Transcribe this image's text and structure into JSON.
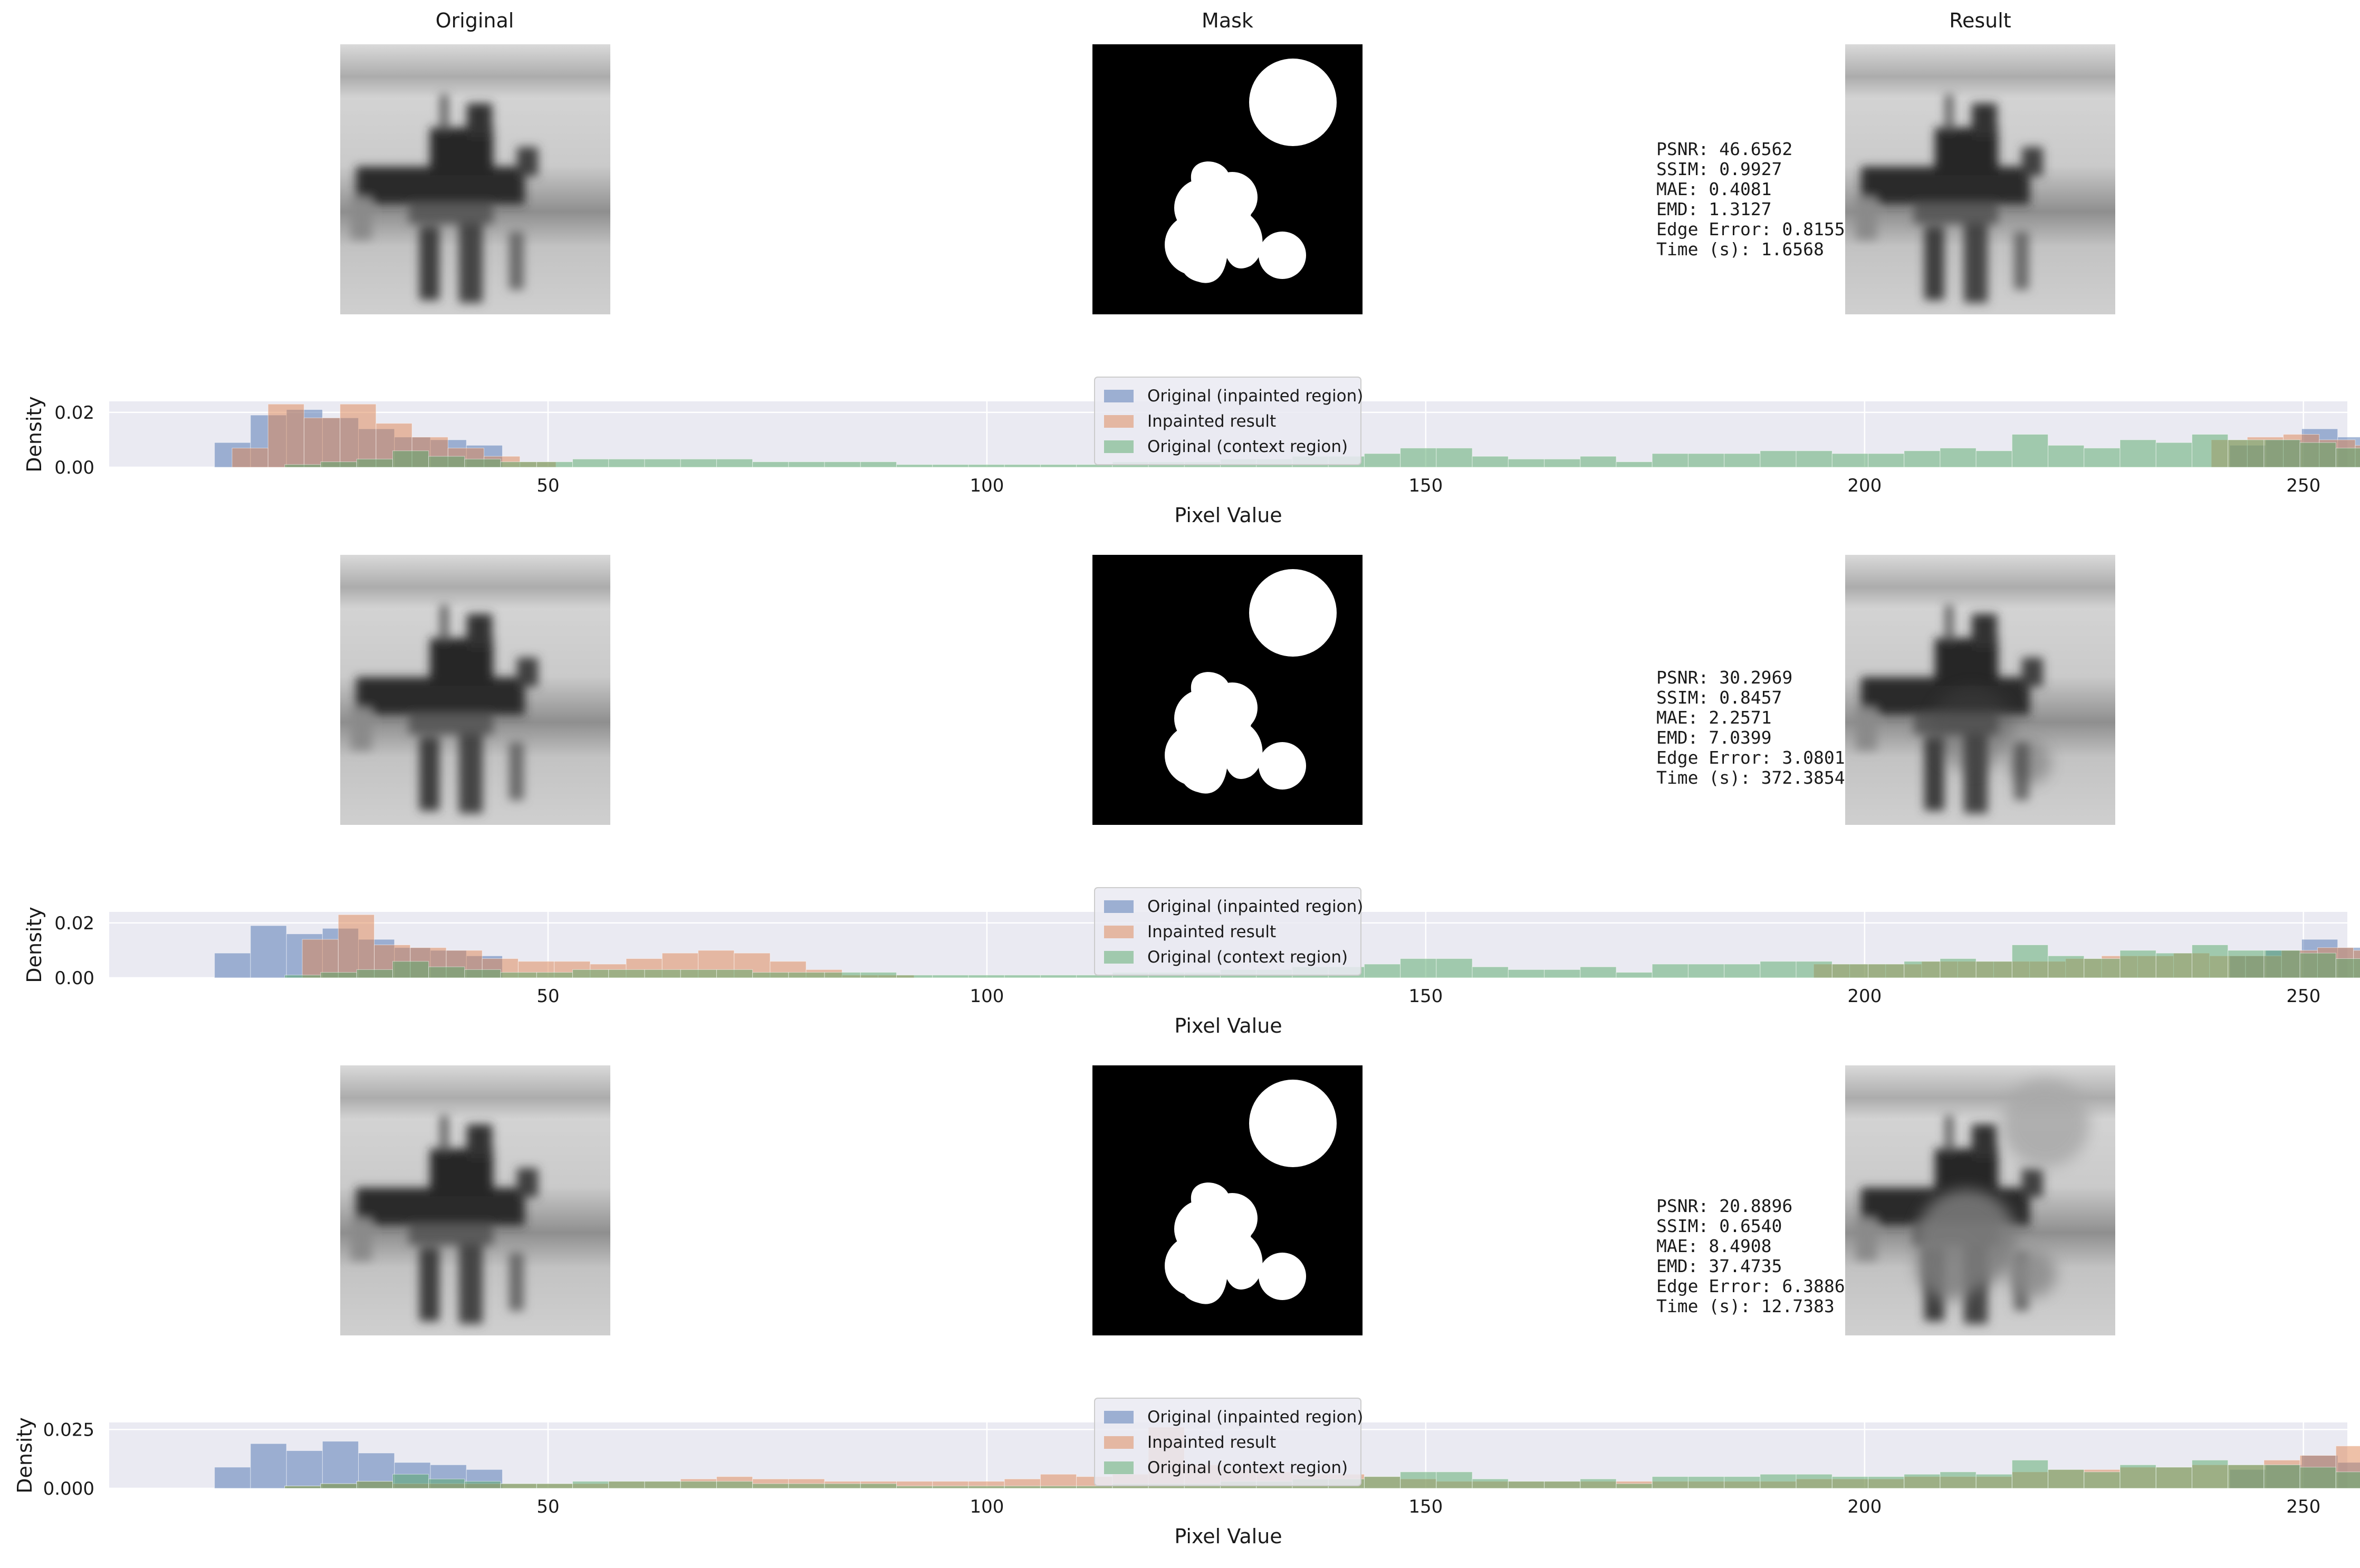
{
  "columns": {
    "original": "Original",
    "mask": "Mask",
    "result": "Result"
  },
  "legend": {
    "original_inpainted": "Original (inpainted region)",
    "inpainted_result": "Inpainted result",
    "original_context": "Original (context region)"
  },
  "colors": {
    "original_inpainted": "#4c72b0",
    "inpainted_result": "#dd8452",
    "original_context": "#55a868",
    "axes_bg": "#eaeaf2",
    "grid": "#ffffff"
  },
  "rows": [
    {
      "metrics": [
        "PSNR: 46.6562",
        "SSIM: 0.9927",
        "MAE: 0.4081",
        "EMD: 1.3127",
        "Edge Error: 0.8155",
        "Time (s): 1.6568"
      ],
      "chart_data": {
        "type": "bar",
        "xlabel": "Pixel Value",
        "ylabel": "Density",
        "xlim": [
          0,
          255
        ],
        "ylim": [
          0,
          0.024
        ],
        "xticks": [
          50,
          100,
          150,
          200,
          250
        ],
        "yticks": [
          0.0,
          0.02
        ],
        "ytick_labels": [
          "0.00",
          "0.02"
        ],
        "bin_width": 4.1,
        "grid": true,
        "legend_position": "center-top",
        "series": [
          {
            "name": "Original (inpainted region)",
            "bin_start": 12,
            "values": [
              0.009,
              0.019,
              0.021,
              0.018,
              0.014,
              0.011,
              0.01,
              0.008,
              0,
              0,
              0,
              0,
              0,
              0,
              0,
              0,
              0,
              0,
              0,
              0,
              0,
              0,
              0,
              0,
              0,
              0,
              0,
              0,
              0,
              0,
              0,
              0,
              0,
              0,
              0,
              0,
              0,
              0,
              0,
              0,
              0,
              0,
              0,
              0,
              0,
              0,
              0,
              0,
              0,
              0,
              0,
              0,
              0,
              0,
              0,
              0,
              0.008,
              0.01,
              0.014,
              0.011,
              0.008,
              0.006
            ]
          },
          {
            "name": "Inpainted result",
            "bin_start": 14,
            "values": [
              0.007,
              0.023,
              0.018,
              0.023,
              0.016,
              0.011,
              0.007,
              0.004,
              0.002,
              0,
              0,
              0,
              0,
              0,
              0,
              0,
              0,
              0,
              0,
              0,
              0,
              0,
              0,
              0,
              0,
              0,
              0,
              0,
              0,
              0,
              0,
              0,
              0,
              0,
              0,
              0,
              0,
              0,
              0,
              0,
              0,
              0,
              0,
              0,
              0,
              0,
              0,
              0,
              0,
              0,
              0,
              0,
              0,
              0,
              0,
              0.01,
              0.011,
              0.012,
              0.01,
              0.008
            ]
          },
          {
            "name": "Original (context region)",
            "bin_start": 20,
            "values": [
              0.001,
              0.002,
              0.003,
              0.006,
              0.004,
              0.003,
              0.002,
              0.002,
              0.003,
              0.003,
              0.003,
              0.003,
              0.003,
              0.002,
              0.002,
              0.002,
              0.002,
              0.001,
              0.001,
              0.001,
              0.001,
              0.001,
              0.001,
              0.002,
              0.002,
              0.002,
              0.003,
              0.003,
              0.004,
              0.004,
              0.005,
              0.007,
              0.007,
              0.004,
              0.003,
              0.003,
              0.004,
              0.002,
              0.005,
              0.005,
              0.005,
              0.006,
              0.006,
              0.005,
              0.005,
              0.006,
              0.007,
              0.006,
              0.012,
              0.008,
              0.007,
              0.01,
              0.009,
              0.012,
              0.01,
              0.01,
              0.009,
              0.007,
              0.006,
              0.006,
              0.006,
              0.006,
              0.001
            ]
          }
        ]
      }
    },
    {
      "metrics": [
        "PSNR: 30.2969",
        "SSIM: 0.8457",
        "MAE: 2.2571",
        "EMD: 7.0399",
        "Edge Error: 3.0801",
        "Time (s): 372.3854"
      ],
      "chart_data": {
        "type": "bar",
        "xlabel": "Pixel Value",
        "ylabel": "Density",
        "xlim": [
          0,
          255
        ],
        "ylim": [
          0,
          0.024
        ],
        "xticks": [
          50,
          100,
          150,
          200,
          250
        ],
        "yticks": [
          0.0,
          0.02
        ],
        "ytick_labels": [
          "0.00",
          "0.02"
        ],
        "bin_width": 4.1,
        "grid": true,
        "legend_position": "center-top",
        "series": [
          {
            "name": "Original (inpainted region)",
            "bin_start": 12,
            "values": [
              0.009,
              0.019,
              0.016,
              0.018,
              0.014,
              0.011,
              0.01,
              0.008,
              0,
              0,
              0,
              0,
              0,
              0,
              0,
              0,
              0,
              0,
              0,
              0,
              0,
              0,
              0,
              0,
              0,
              0,
              0,
              0,
              0,
              0,
              0,
              0,
              0,
              0,
              0,
              0,
              0,
              0,
              0,
              0,
              0,
              0,
              0,
              0,
              0,
              0,
              0,
              0,
              0,
              0,
              0,
              0,
              0,
              0,
              0,
              0,
              0.008,
              0.01,
              0.014,
              0.011,
              0.008,
              0.006
            ]
          },
          {
            "name": "Inpainted result",
            "bin_start": 22,
            "values": [
              0.014,
              0.023,
              0.012,
              0.011,
              0.01,
              0.007,
              0.006,
              0.006,
              0.005,
              0.007,
              0.009,
              0.01,
              0.009,
              0.006,
              0.003,
              0.001,
              0.001,
              0,
              0,
              0,
              0,
              0,
              0,
              0,
              0,
              0,
              0,
              0,
              0,
              0,
              0,
              0,
              0,
              0,
              0,
              0,
              0,
              0,
              0,
              0,
              0,
              0,
              0.005,
              0.005,
              0.005,
              0.006,
              0.006,
              0.006,
              0.006,
              0.007,
              0.008,
              0.008,
              0.009,
              0.008,
              0.008,
              0.01,
              0.011,
              0.01,
              0.009,
              0.008
            ]
          },
          {
            "name": "Original (context region)",
            "bin_start": 20,
            "values": [
              0.001,
              0.002,
              0.003,
              0.006,
              0.004,
              0.003,
              0.002,
              0.002,
              0.003,
              0.003,
              0.003,
              0.003,
              0.003,
              0.002,
              0.002,
              0.002,
              0.002,
              0.001,
              0.001,
              0.001,
              0.001,
              0.001,
              0.001,
              0.002,
              0.002,
              0.002,
              0.003,
              0.003,
              0.004,
              0.004,
              0.005,
              0.007,
              0.007,
              0.004,
              0.003,
              0.003,
              0.004,
              0.002,
              0.005,
              0.005,
              0.005,
              0.006,
              0.006,
              0.005,
              0.005,
              0.006,
              0.007,
              0.006,
              0.012,
              0.008,
              0.007,
              0.01,
              0.009,
              0.012,
              0.01,
              0.01,
              0.009,
              0.007,
              0.006,
              0.006,
              0.006,
              0.006,
              0.001
            ]
          }
        ]
      }
    },
    {
      "metrics": [
        "PSNR: 20.8896",
        "SSIM: 0.6540",
        "MAE: 8.4908",
        "EMD: 37.4735",
        "Edge Error: 6.3886",
        "Time (s): 12.7383"
      ],
      "chart_data": {
        "type": "bar",
        "xlabel": "Pixel Value",
        "ylabel": "Density",
        "xlim": [
          0,
          255
        ],
        "ylim": [
          0,
          0.028
        ],
        "xticks": [
          50,
          100,
          150,
          200,
          250
        ],
        "yticks": [
          0.0,
          0.025
        ],
        "ytick_labels": [
          "0.000",
          "0.025"
        ],
        "bin_width": 4.1,
        "grid": true,
        "legend_position": "center-top",
        "series": [
          {
            "name": "Original (inpainted region)",
            "bin_start": 12,
            "values": [
              0.009,
              0.019,
              0.016,
              0.02,
              0.015,
              0.011,
              0.01,
              0.008,
              0,
              0,
              0,
              0,
              0,
              0,
              0,
              0,
              0,
              0,
              0,
              0,
              0,
              0,
              0,
              0,
              0,
              0,
              0,
              0,
              0,
              0,
              0,
              0,
              0,
              0,
              0,
              0,
              0,
              0,
              0,
              0,
              0,
              0,
              0,
              0,
              0,
              0,
              0,
              0,
              0,
              0,
              0,
              0,
              0,
              0,
              0,
              0,
              0.008,
              0.01,
              0.014,
              0.011,
              0.008,
              0.006
            ]
          },
          {
            "name": "Inpainted result",
            "bin_start": 20,
            "values": [
              0.001,
              0.002,
              0.003,
              0.002,
              0.002,
              0.002,
              0.002,
              0.002,
              0.002,
              0.003,
              0.003,
              0.004,
              0.005,
              0.004,
              0.004,
              0.003,
              0.003,
              0.003,
              0.003,
              0.003,
              0.004,
              0.006,
              0.005,
              0.006,
              0.026,
              0.01,
              0.008,
              0.007,
              0.006,
              0.006,
              0.005,
              0.004,
              0.003,
              0.003,
              0.003,
              0.003,
              0.003,
              0.003,
              0.003,
              0.003,
              0.003,
              0.003,
              0.004,
              0.004,
              0.004,
              0.005,
              0.005,
              0.005,
              0.007,
              0.008,
              0.008,
              0.009,
              0.009,
              0.01,
              0.01,
              0.012,
              0.014,
              0.018,
              0.006
            ]
          },
          {
            "name": "Original (context region)",
            "bin_start": 20,
            "values": [
              0.001,
              0.002,
              0.003,
              0.006,
              0.004,
              0.003,
              0.002,
              0.002,
              0.003,
              0.003,
              0.003,
              0.003,
              0.003,
              0.002,
              0.002,
              0.002,
              0.002,
              0.001,
              0.001,
              0.001,
              0.001,
              0.001,
              0.001,
              0.002,
              0.002,
              0.002,
              0.003,
              0.003,
              0.004,
              0.004,
              0.005,
              0.007,
              0.007,
              0.004,
              0.003,
              0.003,
              0.004,
              0.002,
              0.005,
              0.005,
              0.005,
              0.006,
              0.006,
              0.005,
              0.005,
              0.006,
              0.007,
              0.006,
              0.012,
              0.008,
              0.007,
              0.01,
              0.009,
              0.012,
              0.01,
              0.01,
              0.009,
              0.007,
              0.006,
              0.006,
              0.006,
              0.006,
              0.001
            ]
          }
        ]
      }
    }
  ]
}
